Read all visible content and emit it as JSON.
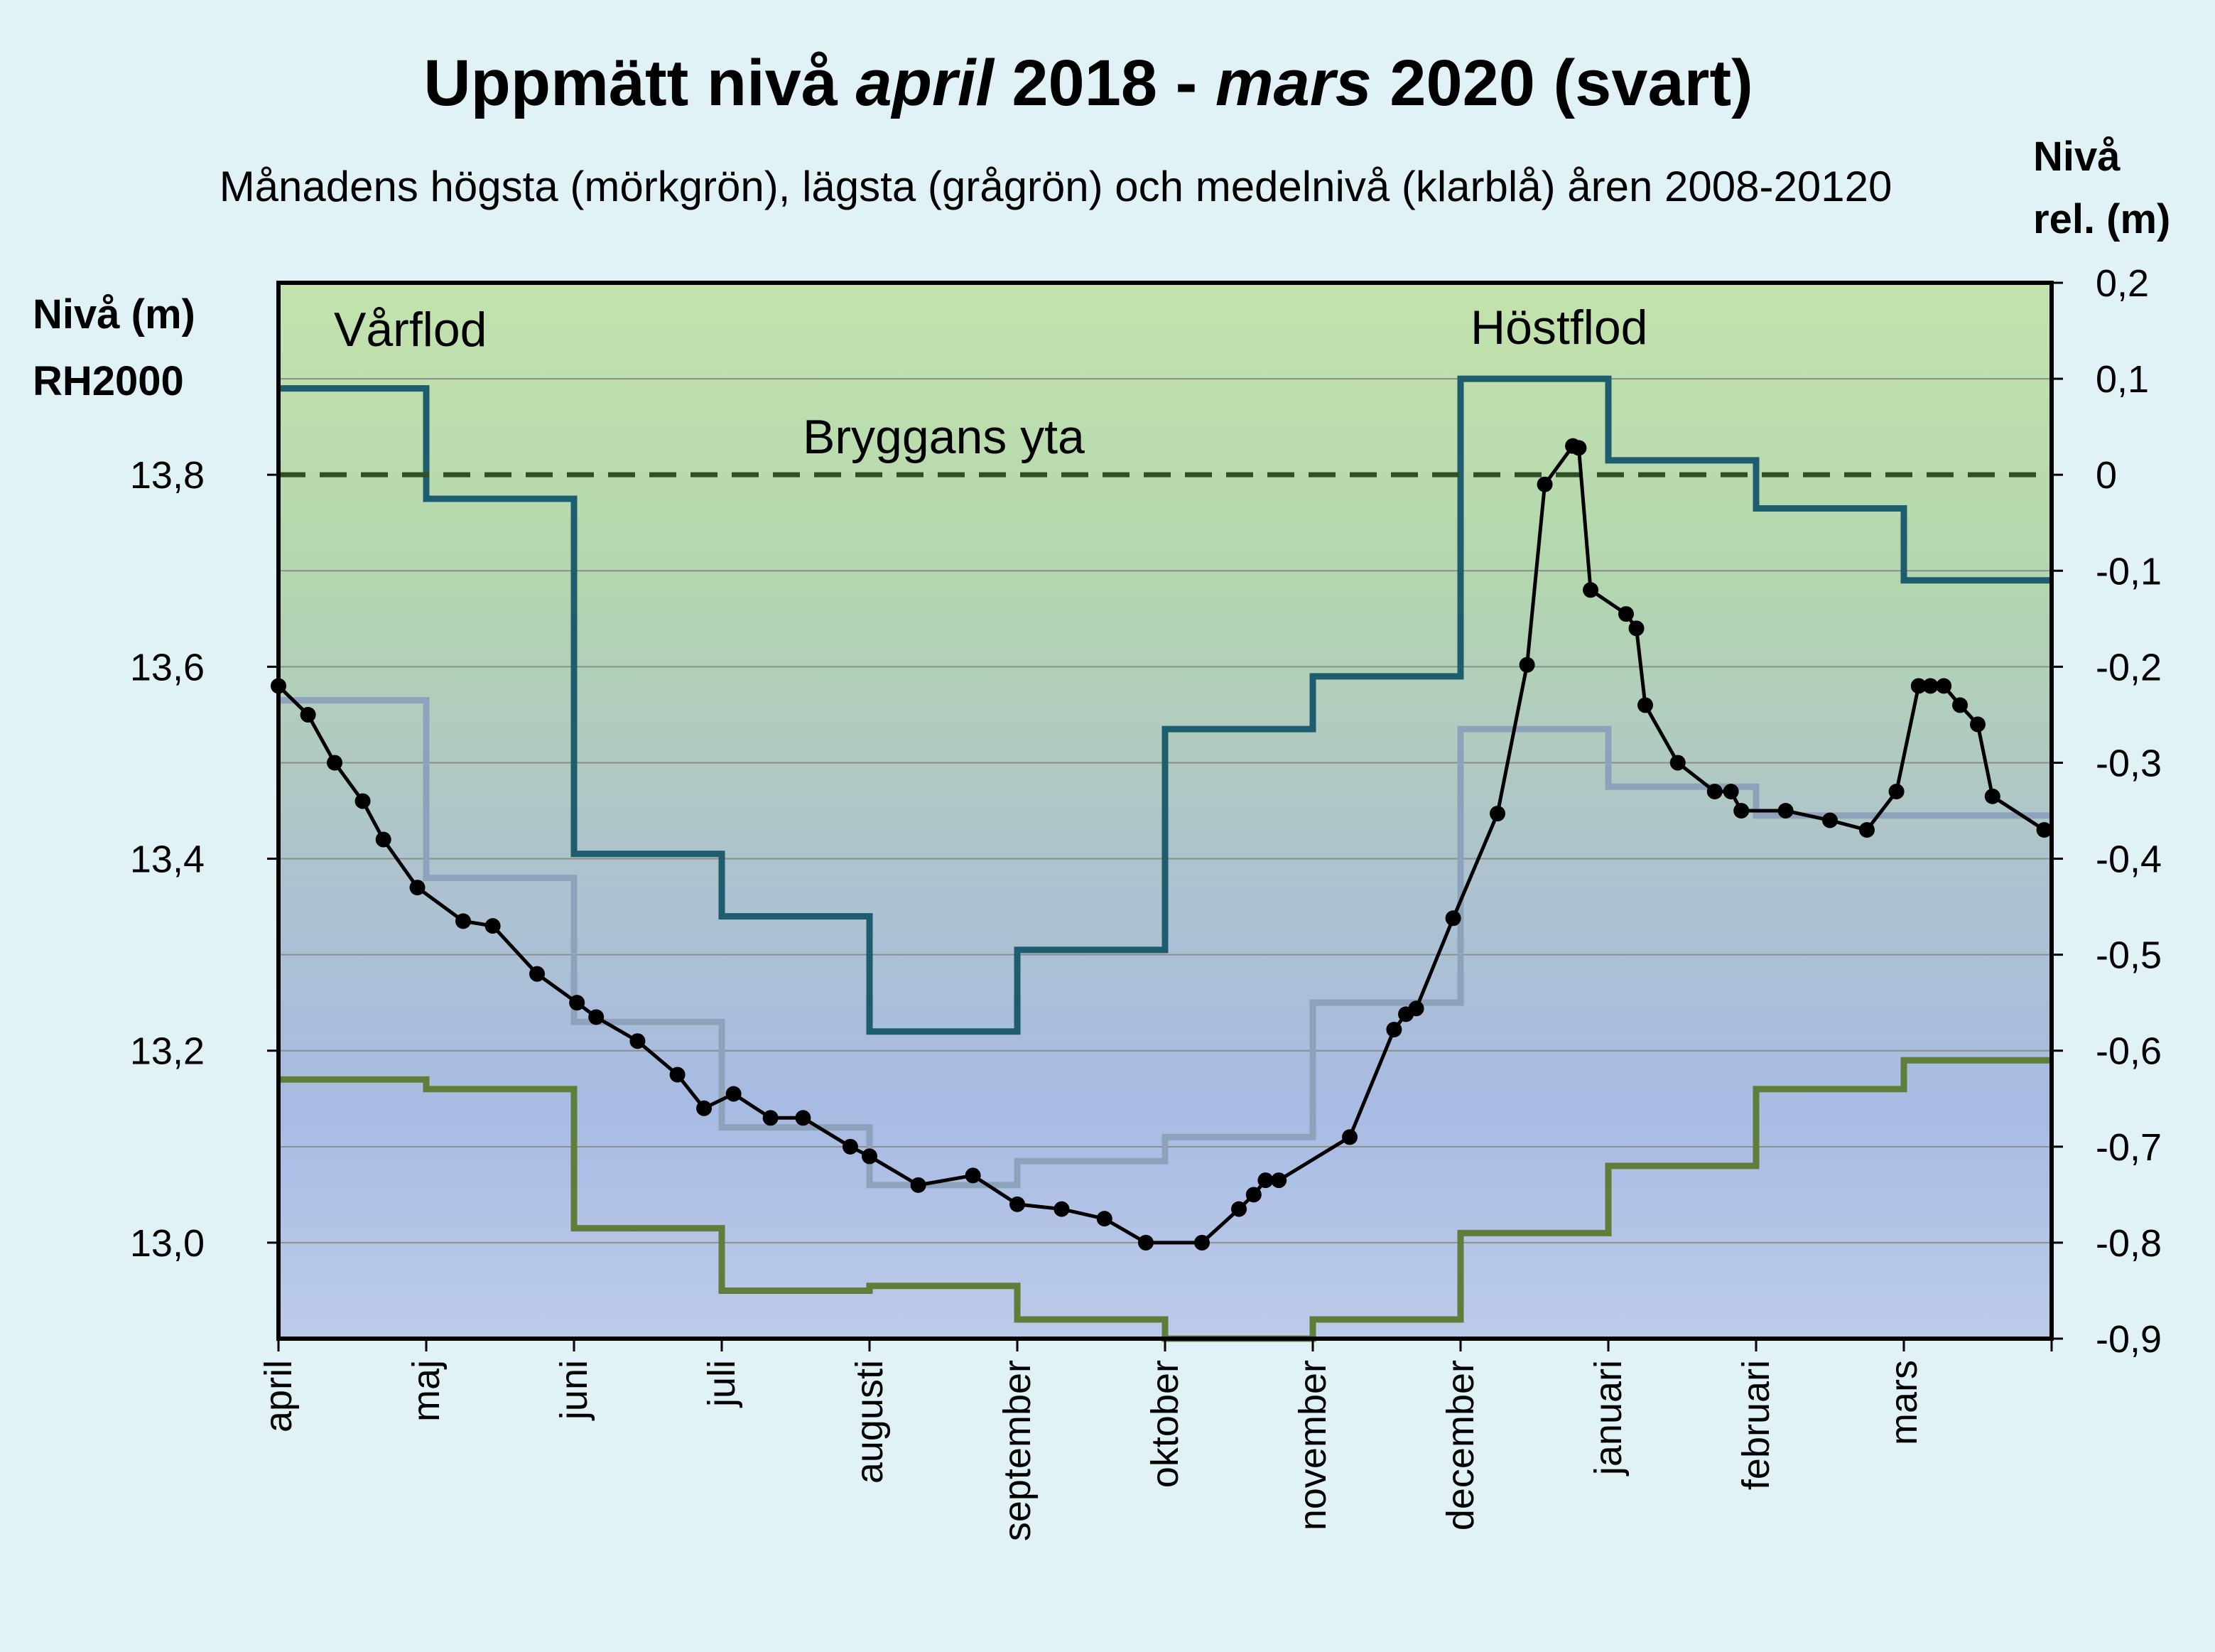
{
  "chart_data": {
    "type": "line",
    "title": {
      "part1": "Uppmätt nivå ",
      "part2": "april",
      "part3": " 2018 - ",
      "part4": "mars",
      "part5": " 2020   (svart)"
    },
    "subtitle": "Månadens högsta (mörkgrön), lägsta (grågrön) och medelnivå (klarblå) åren 2008-20120",
    "y_left_label": [
      "Nivå (m)",
      "RH2000"
    ],
    "y_right_label": [
      "Nivå",
      "rel. (m)"
    ],
    "y_left_ticks": [
      {
        "value": 13.8,
        "label": "13,8"
      },
      {
        "value": 13.6,
        "label": "13,6"
      },
      {
        "value": 13.4,
        "label": "13,4"
      },
      {
        "value": 13.2,
        "label": "13,2"
      },
      {
        "value": 13.0,
        "label": "13,0"
      }
    ],
    "y_right_ticks": [
      {
        "value": 0.2,
        "label": "0,2"
      },
      {
        "value": 0.1,
        "label": "0,1"
      },
      {
        "value": 0.0,
        "label": "0"
      },
      {
        "value": -0.1,
        "label": "-0,1"
      },
      {
        "value": -0.2,
        "label": "-0,2"
      },
      {
        "value": -0.3,
        "label": "-0,3"
      },
      {
        "value": -0.4,
        "label": "-0,4"
      },
      {
        "value": -0.5,
        "label": "-0,5"
      },
      {
        "value": -0.6,
        "label": "-0,6"
      },
      {
        "value": -0.7,
        "label": "-0,7"
      },
      {
        "value": -0.8,
        "label": "-0,8"
      },
      {
        "value": -0.9,
        "label": "-0,9"
      }
    ],
    "y_range_relative": [
      -0.9,
      0.2
    ],
    "reference_level_rh2000": 13.8,
    "months": [
      "april",
      "maj",
      "juni",
      "juli",
      "augusti",
      "september",
      "oktober",
      "november",
      "december",
      "januari",
      "februari",
      "mars"
    ],
    "annotations": {
      "spring": "Vårflod",
      "autumn": "Höstflod",
      "jetty": "Bryggans yta"
    },
    "grid": true,
    "series": [
      {
        "name": "högsta",
        "color": "#1d5d6e",
        "kind": "step",
        "monthly_values_relative": [
          0.09,
          -0.025,
          -0.395,
          -0.46,
          -0.58,
          -0.495,
          -0.265,
          -0.21,
          0.1,
          0.015,
          -0.035,
          -0.11
        ]
      },
      {
        "name": "lägsta",
        "color": "#5e7e39",
        "kind": "step",
        "monthly_values_relative": [
          -0.63,
          -0.64,
          -0.785,
          -0.85,
          -0.845,
          -0.88,
          -0.9,
          -0.88,
          -0.79,
          -0.72,
          -0.64,
          -0.61
        ]
      },
      {
        "name": "medelnivå",
        "color": "#8fa2bb",
        "kind": "step",
        "monthly_values_relative": [
          -0.235,
          -0.42,
          -0.57,
          -0.68,
          -0.74,
          -0.715,
          -0.69,
          -0.55,
          -0.265,
          -0.325,
          -0.355,
          -0.355
        ]
      },
      {
        "name": "uppmätt",
        "color": "#000000",
        "kind": "line_markers",
        "x_months": [
          0.0,
          0.2,
          0.38,
          0.57,
          0.71,
          0.94,
          1.25,
          1.45,
          1.75,
          2.02,
          2.15,
          2.43,
          2.7,
          2.88,
          3.08,
          3.33,
          3.55,
          3.87,
          4.0,
          4.33,
          4.7,
          5.0,
          5.3,
          5.59,
          5.87,
          6.25,
          6.5,
          6.6,
          6.68,
          6.77,
          7.25,
          7.55,
          7.63,
          7.7,
          7.95,
          8.25,
          8.45,
          8.57,
          8.76,
          8.8,
          8.88,
          9.12,
          9.19,
          9.25,
          9.47,
          9.72,
          9.83,
          9.9,
          10.2,
          10.5,
          10.75,
          10.95,
          11.1,
          11.18,
          11.27,
          11.38,
          11.5,
          11.6,
          11.95
        ],
        "y_relative": [
          -0.22,
          -0.25,
          -0.3,
          -0.34,
          -0.38,
          -0.43,
          -0.465,
          -0.47,
          -0.52,
          -0.55,
          -0.565,
          -0.59,
          -0.625,
          -0.66,
          -0.645,
          -0.67,
          -0.67,
          -0.7,
          -0.71,
          -0.74,
          -0.73,
          -0.76,
          -0.765,
          -0.775,
          -0.8,
          -0.8,
          -0.765,
          -0.75,
          -0.735,
          -0.735,
          -0.69,
          -0.578,
          -0.562,
          -0.556,
          -0.462,
          -0.353,
          -0.198,
          -0.01,
          0.03,
          0.028,
          -0.12,
          -0.145,
          -0.16,
          -0.24,
          -0.3,
          -0.33,
          -0.33,
          -0.35,
          -0.35,
          -0.36,
          -0.37,
          -0.33,
          -0.22,
          -0.22,
          -0.22,
          -0.24,
          -0.26,
          -0.335,
          -0.37
        ]
      }
    ]
  }
}
